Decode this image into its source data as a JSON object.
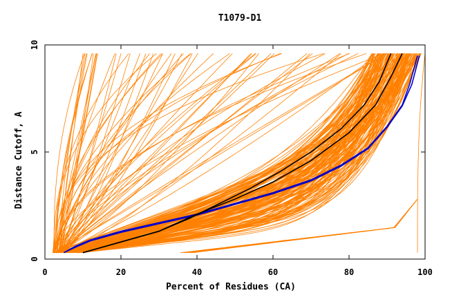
{
  "chart_data": {
    "type": "line",
    "title": "T1079-D1",
    "xlabel": "Percent of Residues (CA)",
    "ylabel": "Distance Cutoff, A",
    "xlim": [
      0,
      100
    ],
    "ylim": [
      0,
      10
    ],
    "x_ticks": [
      "0",
      "20",
      "40",
      "60",
      "80",
      "100"
    ],
    "y_ticks": [
      "0",
      "5",
      "10"
    ],
    "grid": false,
    "legend": "none",
    "colors": {
      "bundle": "#ff8000",
      "blue": "#0000cc",
      "black": "#000000"
    },
    "highlight_series": [
      {
        "color": "#0000cc",
        "x": [
          5,
          8,
          12,
          20,
          30,
          40,
          50,
          60,
          70,
          78,
          85,
          90,
          94,
          96,
          98
        ],
        "y": [
          0.3,
          0.6,
          0.9,
          1.3,
          1.7,
          2.1,
          2.6,
          3.1,
          3.7,
          4.4,
          5.2,
          6.2,
          7.2,
          8.2,
          9.5
        ]
      },
      {
        "color": "#0000cc",
        "x": [
          5,
          8,
          12,
          20,
          30,
          40,
          50,
          60,
          70,
          78,
          85,
          90,
          94,
          96.5,
          98.5
        ],
        "y": [
          0.3,
          0.55,
          0.85,
          1.25,
          1.65,
          2.05,
          2.55,
          3.05,
          3.65,
          4.35,
          5.15,
          6.15,
          7.15,
          8.15,
          9.5
        ]
      },
      {
        "color": "#000000",
        "x": [
          10,
          20,
          30,
          40,
          50,
          60,
          70,
          80,
          87,
          91,
          94
        ],
        "y": [
          0.3,
          0.8,
          1.3,
          2.1,
          2.8,
          3.6,
          4.6,
          5.9,
          7.2,
          8.5,
          9.6
        ]
      },
      {
        "color": "#000000",
        "x": [
          10,
          20,
          30,
          38,
          46,
          54,
          62,
          70,
          78,
          84,
          88,
          91
        ],
        "y": [
          0.3,
          0.8,
          1.3,
          1.9,
          2.6,
          3.3,
          4.1,
          5.0,
          6.1,
          7.2,
          8.3,
          9.6
        ]
      }
    ]
  }
}
